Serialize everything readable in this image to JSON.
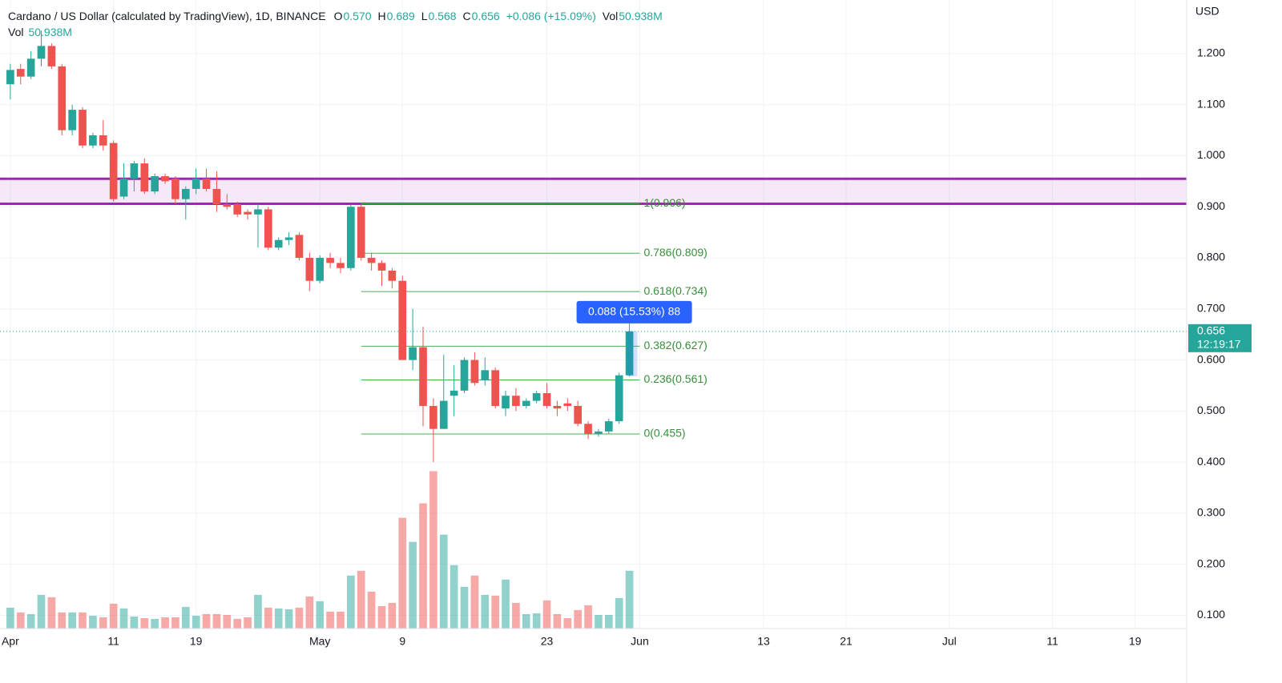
{
  "chart_data": {
    "type": "candlestick",
    "title": "Cardano / US Dollar (calculated by TradingView), 1D, BINANCE",
    "ohlc_legend": [
      {
        "key": "O",
        "value": "0.570"
      },
      {
        "key": "H",
        "value": "0.689"
      },
      {
        "key": "L",
        "value": "0.568"
      },
      {
        "key": "C",
        "value": "0.656"
      }
    ],
    "change": "+0.086 (+15.09%)",
    "volume_key": "Vol",
    "volume_value": "50.938M",
    "currency": "USD",
    "up_color": "#26a69a",
    "down_color": "#ef5350",
    "x": [
      "Apr 1",
      "Apr 2",
      "Apr 3",
      "Apr 4",
      "Apr 5",
      "Apr 6",
      "Apr 7",
      "Apr 8",
      "Apr 9",
      "Apr 10",
      "Apr 11",
      "Apr 12",
      "Apr 13",
      "Apr 14",
      "Apr 15",
      "Apr 16",
      "Apr 17",
      "Apr 18",
      "Apr 19",
      "Apr 20",
      "Apr 21",
      "Apr 22",
      "Apr 23",
      "Apr 24",
      "Apr 25",
      "Apr 26",
      "Apr 27",
      "Apr 28",
      "Apr 29",
      "Apr 30",
      "May 1",
      "May 2",
      "May 3",
      "May 4",
      "May 5",
      "May 6",
      "May 7",
      "May 8",
      "May 9",
      "May 10",
      "May 11",
      "May 12",
      "May 13",
      "May 14",
      "May 15",
      "May 16",
      "May 17",
      "May 18",
      "May 19",
      "May 20",
      "May 21",
      "May 22",
      "May 23",
      "May 24",
      "May 25",
      "May 26",
      "May 27",
      "May 28",
      "May 29",
      "May 30",
      "May 31"
    ],
    "open": [
      1.14,
      1.17,
      1.155,
      1.19,
      1.215,
      1.175,
      1.05,
      1.09,
      1.02,
      1.04,
      1.025,
      0.92,
      0.955,
      0.985,
      0.93,
      0.96,
      0.955,
      0.915,
      0.935,
      0.955,
      0.935,
      0.905,
      0.905,
      0.89,
      0.885,
      0.895,
      0.82,
      0.835,
      0.845,
      0.8,
      0.755,
      0.8,
      0.79,
      0.78,
      0.9,
      0.8,
      0.79,
      0.775,
      0.755,
      0.6,
      0.625,
      0.51,
      0.465,
      0.53,
      0.54,
      0.6,
      0.56,
      0.58,
      0.505,
      0.53,
      0.51,
      0.52,
      0.535,
      0.51,
      0.515,
      0.51,
      0.475,
      0.455,
      0.46,
      0.48,
      0.57
    ],
    "high": [
      1.18,
      1.18,
      1.205,
      1.245,
      1.22,
      1.18,
      1.1,
      1.095,
      1.045,
      1.07,
      1.03,
      0.985,
      0.99,
      0.995,
      0.965,
      0.965,
      0.96,
      0.94,
      0.975,
      0.975,
      0.97,
      0.925,
      0.91,
      0.895,
      0.905,
      0.9,
      0.84,
      0.85,
      0.85,
      0.81,
      0.805,
      0.81,
      0.8,
      0.905,
      0.905,
      0.81,
      0.795,
      0.78,
      0.765,
      0.7,
      0.665,
      0.525,
      0.61,
      0.59,
      0.605,
      0.615,
      0.605,
      0.585,
      0.54,
      0.545,
      0.525,
      0.54,
      0.555,
      0.52,
      0.525,
      0.52,
      0.48,
      0.465,
      0.485,
      0.575,
      0.689
    ],
    "low": [
      1.11,
      1.14,
      1.15,
      1.175,
      1.17,
      1.04,
      1.04,
      1.015,
      1.015,
      1.01,
      0.91,
      0.915,
      0.93,
      0.925,
      0.925,
      0.945,
      0.905,
      0.875,
      0.925,
      0.93,
      0.89,
      0.895,
      0.88,
      0.875,
      0.82,
      0.815,
      0.815,
      0.825,
      0.795,
      0.735,
      0.75,
      0.78,
      0.77,
      0.775,
      0.795,
      0.775,
      0.745,
      0.74,
      0.6,
      0.58,
      0.47,
      0.4,
      0.465,
      0.49,
      0.535,
      0.55,
      0.55,
      0.505,
      0.49,
      0.5,
      0.505,
      0.515,
      0.505,
      0.49,
      0.5,
      0.47,
      0.445,
      0.45,
      0.455,
      0.475,
      0.568
    ],
    "close": [
      1.168,
      1.155,
      1.19,
      1.215,
      1.175,
      1.05,
      1.09,
      1.02,
      1.04,
      1.02,
      0.915,
      0.955,
      0.985,
      0.93,
      0.96,
      0.95,
      0.915,
      0.935,
      0.955,
      0.935,
      0.905,
      0.9,
      0.885,
      0.885,
      0.895,
      0.82,
      0.835,
      0.84,
      0.8,
      0.755,
      0.8,
      0.79,
      0.78,
      0.9,
      0.8,
      0.79,
      0.775,
      0.755,
      0.6,
      0.625,
      0.51,
      0.465,
      0.52,
      0.54,
      0.6,
      0.555,
      0.58,
      0.51,
      0.53,
      0.51,
      0.52,
      0.535,
      0.51,
      0.505,
      0.51,
      0.475,
      0.455,
      0.46,
      0.48,
      0.57,
      0.656
    ],
    "volume": [
      18.4,
      14.2,
      12.7,
      29.7,
      27.6,
      14.2,
      14.2,
      14.2,
      11.3,
      9.9,
      21.9,
      17.7,
      10.6,
      9.2,
      8.5,
      9.9,
      9.9,
      19.1,
      11.3,
      12.7,
      12.7,
      12.0,
      8.5,
      9.9,
      29.7,
      18.4,
      17.7,
      17.0,
      18.4,
      28.3,
      24.1,
      14.9,
      14.9,
      46.7,
      50.9,
      32.5,
      19.8,
      22.6,
      97.6,
      76.4,
      110.4,
      138.7,
      82.8,
      55.9,
      36.8,
      46.7,
      29.7,
      29.0,
      43.2,
      22.6,
      12.7,
      13.4,
      24.8,
      12.7,
      9.2,
      16.3,
      20.5,
      12.0,
      12.0,
      26.9,
      50.938
    ],
    "volume_ylim": [
      0,
      554
    ],
    "xlim": [
      "Mar 31",
      "Jul 24"
    ],
    "xticks": [
      {
        "value": "Apr 1",
        "label": "Apr"
      },
      {
        "value": "Apr 11",
        "label": "11"
      },
      {
        "value": "Apr 19",
        "label": "19"
      },
      {
        "value": "May 1",
        "label": "May"
      },
      {
        "value": "May 9",
        "label": "9"
      },
      {
        "value": "May 23",
        "label": "23"
      },
      {
        "value": "Jun 1",
        "label": "Jun"
      },
      {
        "value": "Jun 13",
        "label": "13"
      },
      {
        "value": "Jun 21",
        "label": "21"
      },
      {
        "value": "Jul 1",
        "label": "Jul"
      },
      {
        "value": "Jul 11",
        "label": "11"
      },
      {
        "value": "Jul 19",
        "label": "19"
      }
    ],
    "ylim": [
      0.074,
      1.305
    ],
    "yticks": [
      {
        "value": 0.1,
        "label": "0.100"
      },
      {
        "value": 0.2,
        "label": "0.200"
      },
      {
        "value": 0.3,
        "label": "0.300"
      },
      {
        "value": 0.4,
        "label": "0.400"
      },
      {
        "value": 0.5,
        "label": "0.500"
      },
      {
        "value": 0.6,
        "label": "0.600"
      },
      {
        "value": 0.7,
        "label": "0.700"
      },
      {
        "value": 0.8,
        "label": "0.800"
      },
      {
        "value": 0.9,
        "label": "0.900"
      },
      {
        "value": 1.0,
        "label": "1.000"
      },
      {
        "value": 1.1,
        "label": "1.100"
      },
      {
        "value": 1.2,
        "label": "1.200"
      }
    ],
    "grid": true,
    "zone": {
      "from": 0.906,
      "to": 0.955,
      "color": "#9c27b0"
    },
    "fib": {
      "start": "May 5",
      "end": "Jun 1",
      "color": "#4caf50",
      "levels": [
        {
          "value": 0.906,
          "label": "1(0.906)"
        },
        {
          "value": 0.809,
          "label": "0.786(0.809)"
        },
        {
          "value": 0.734,
          "label": "0.618(0.734)"
        },
        {
          "value": 0.627,
          "label": "0.382(0.627)"
        },
        {
          "value": 0.561,
          "label": "0.236(0.561)"
        },
        {
          "value": 0.455,
          "label": "0(0.455)"
        }
      ]
    },
    "measure": {
      "label": "0.088 (15.53%) 88"
    },
    "last_price": {
      "label": "0.656",
      "countdown": "12:19:17"
    }
  }
}
